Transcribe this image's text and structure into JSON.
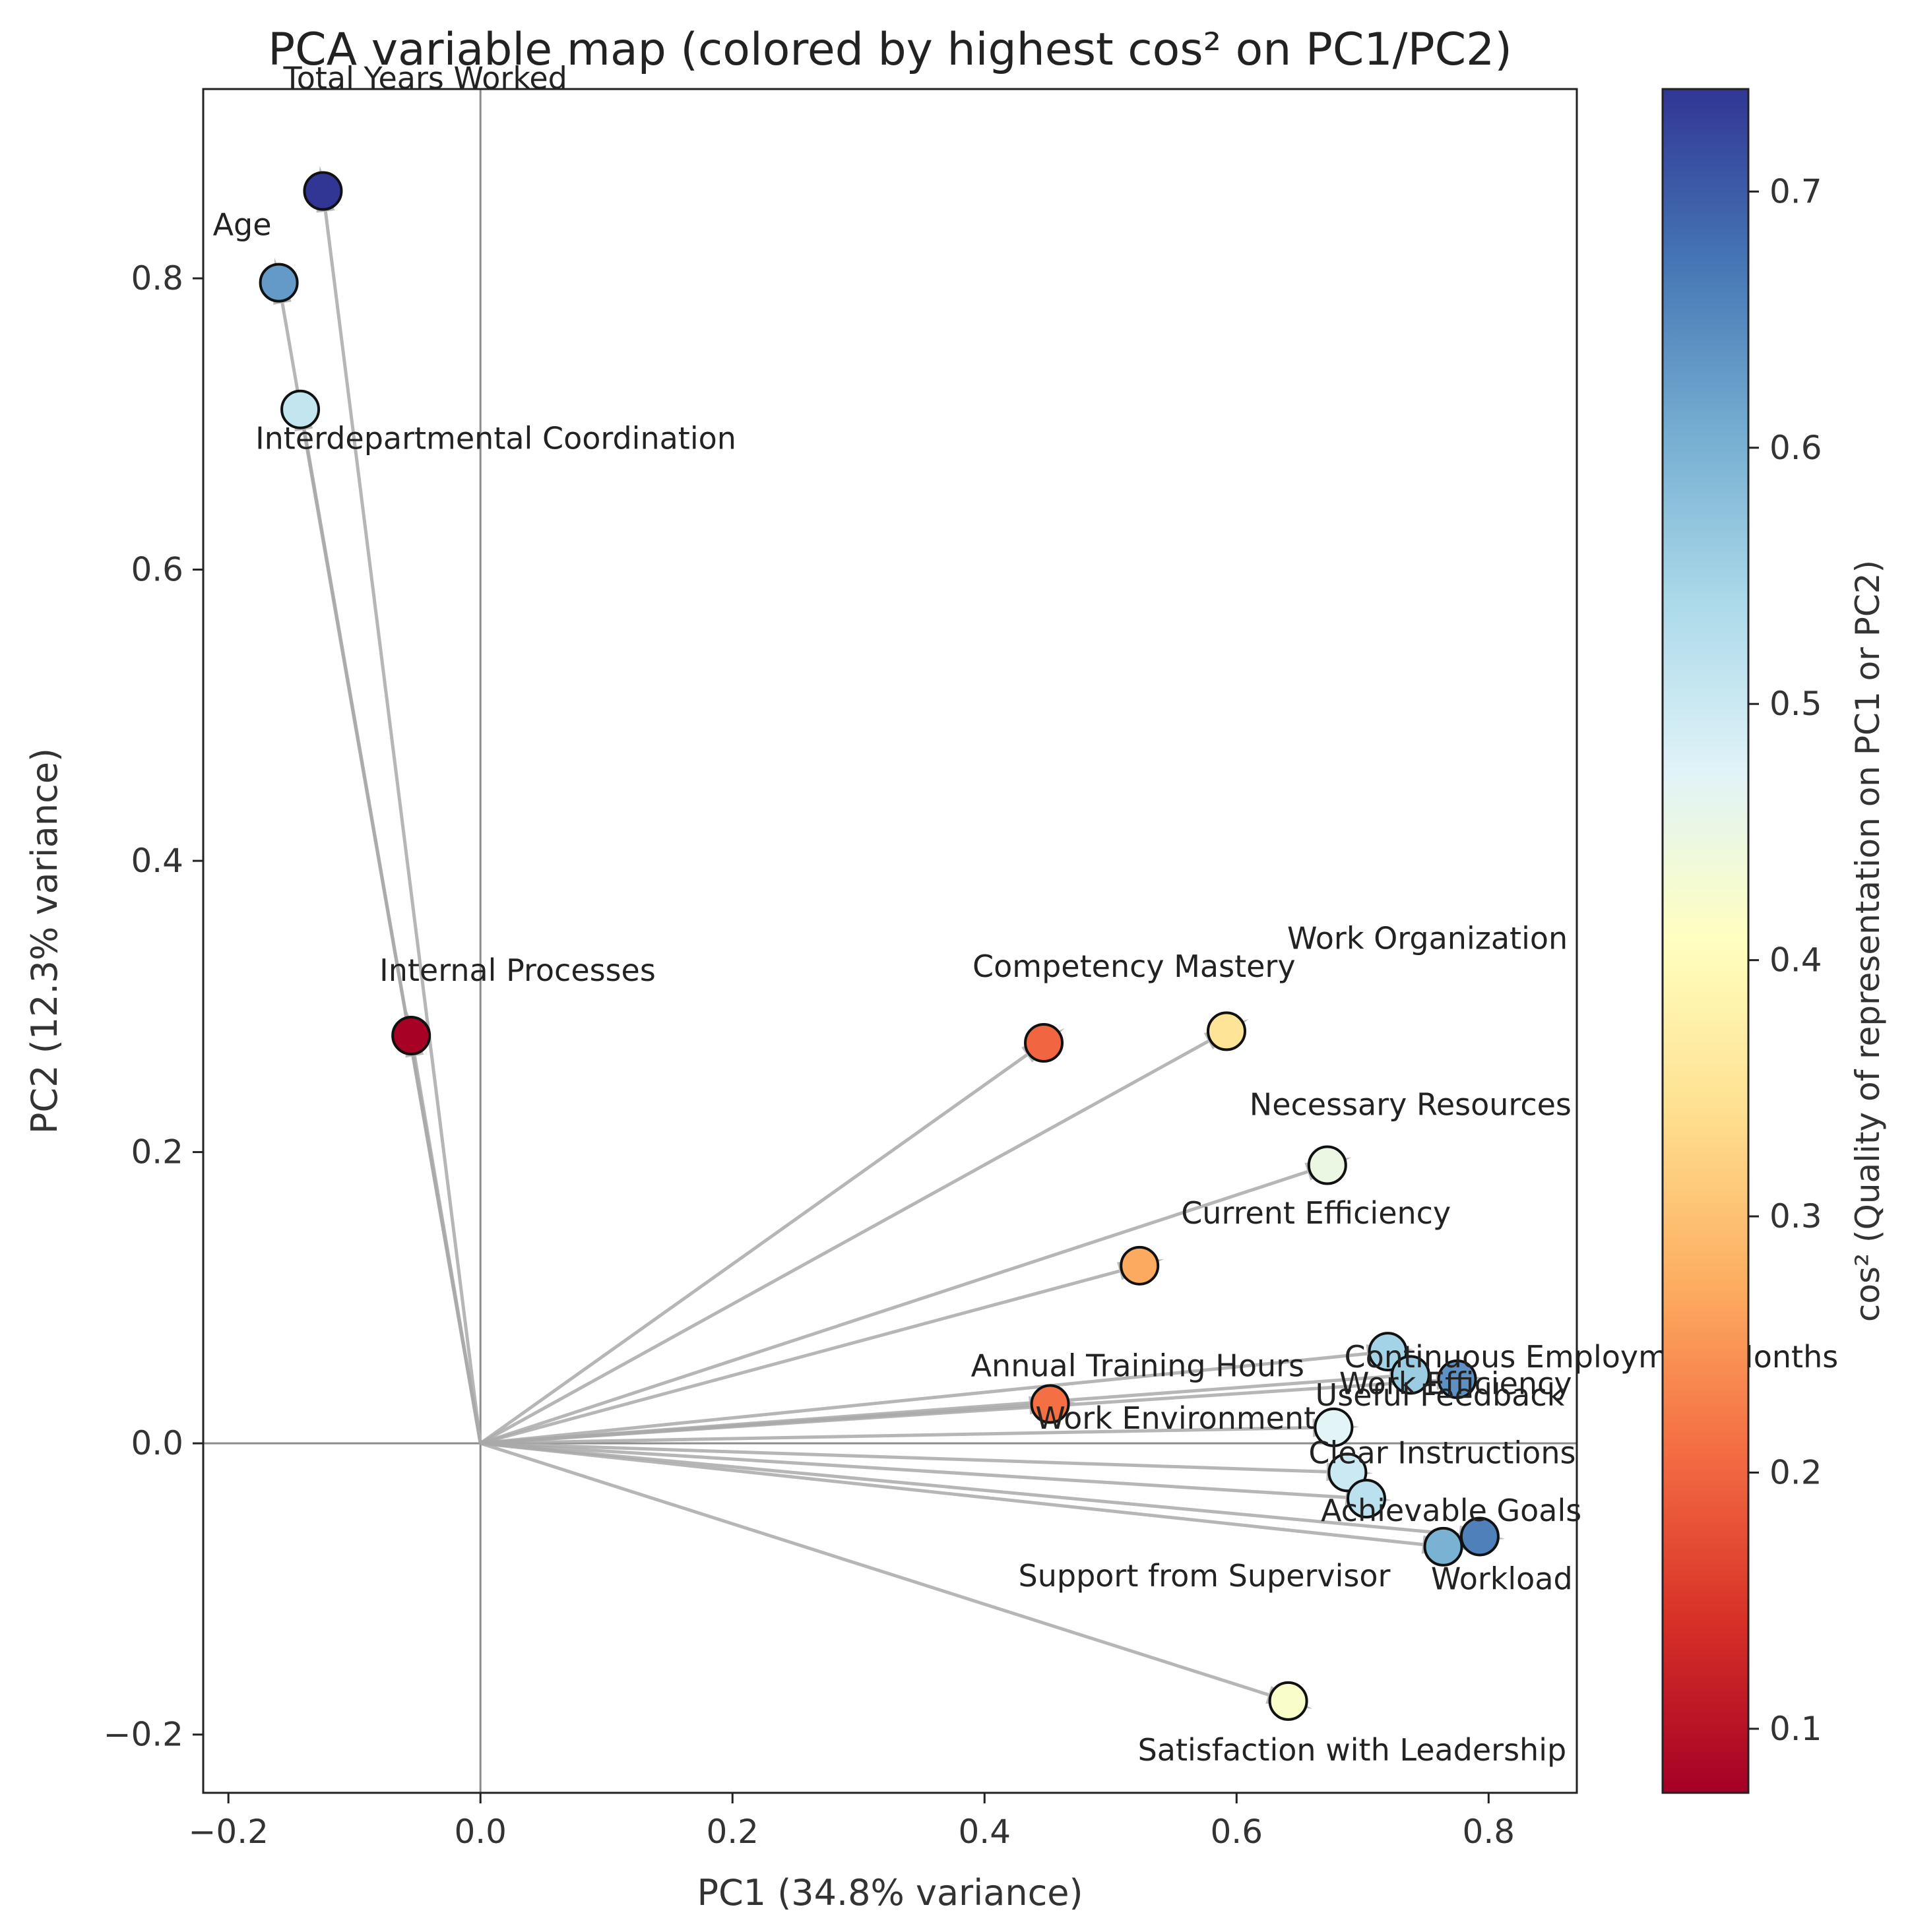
{
  "chart_data": {
    "type": "scatter",
    "title": "PCA variable map (colored by highest cos² on PC1/PC2)",
    "xlabel": "PC1 (34.8% variance)",
    "ylabel": "PC2 (12.3% variance)",
    "xlim": [
      -0.22,
      0.87
    ],
    "ylim": [
      -0.24,
      0.93
    ],
    "xticks": [
      -0.2,
      0.0,
      0.2,
      0.4,
      0.6,
      0.8
    ],
    "xtick_labels": [
      "−0.2",
      "0.0",
      "0.2",
      "0.4",
      "0.6",
      "0.8"
    ],
    "yticks": [
      -0.2,
      0.0,
      0.2,
      0.4,
      0.6,
      0.8
    ],
    "ytick_labels": [
      "−0.2",
      "0.0",
      "0.2",
      "0.4",
      "0.6",
      "0.8"
    ],
    "reference_lines": {
      "x0": 0,
      "y0": 0
    },
    "colorbar": {
      "label": "cos² (Quality of representation on PC1 or PC2)",
      "colormap": "RdYlBu",
      "range": [
        0.075,
        0.74
      ],
      "ticks": [
        0.1,
        0.2,
        0.3,
        0.4,
        0.5,
        0.6,
        0.7
      ],
      "tick_labels": [
        "0.1",
        "0.2",
        "0.3",
        "0.4",
        "0.5",
        "0.6",
        "0.7"
      ]
    },
    "points": [
      {
        "label": "Total Years Worked",
        "x": -0.125,
        "y": 0.86,
        "cos2": 0.74
      },
      {
        "label": "Age",
        "x": -0.16,
        "y": 0.797,
        "cos2": 0.63
      },
      {
        "label": "Interdepartmental Coordination",
        "x": -0.143,
        "y": 0.71,
        "cos2": 0.51
      },
      {
        "label": "Internal Processes",
        "x": -0.055,
        "y": 0.28,
        "cos2": 0.078
      },
      {
        "label": "Competency Mastery",
        "x": 0.447,
        "y": 0.275,
        "cos2": 0.2
      },
      {
        "label": "Work Organization",
        "x": 0.592,
        "y": 0.283,
        "cos2": 0.35
      },
      {
        "label": "Necessary Resources",
        "x": 0.672,
        "y": 0.191,
        "cos2": 0.45
      },
      {
        "label": "Current Efficiency",
        "x": 0.523,
        "y": 0.122,
        "cos2": 0.27
      },
      {
        "label": "Continuous Employment Months",
        "x": 0.72,
        "y": 0.063,
        "cos2": 0.55
      },
      {
        "label": "Work Efficiency",
        "x": 0.738,
        "y": 0.047,
        "cos2": 0.56
      },
      {
        "label": "Useful Feedback",
        "x": 0.775,
        "y": 0.044,
        "cos2": 0.64
      },
      {
        "label": "Annual Training Hours",
        "x": 0.452,
        "y": 0.027,
        "cos2": 0.21
      },
      {
        "label": "Work Environment",
        "x": 0.677,
        "y": 0.011,
        "cos2": 0.47
      },
      {
        "label": "Clear Instructions",
        "x": 0.688,
        "y": -0.02,
        "cos2": 0.5
      },
      {
        "label": "Achievable Goals",
        "x": 0.703,
        "y": -0.038,
        "cos2": 0.52
      },
      {
        "label": "Workload",
        "x": 0.793,
        "y": -0.064,
        "cos2": 0.66
      },
      {
        "label": "Support from Supervisor",
        "x": 0.764,
        "y": -0.071,
        "cos2": 0.6
      },
      {
        "label": "Satisfaction with Leadership",
        "x": 0.641,
        "y": -0.177,
        "cos2": 0.42
      }
    ]
  }
}
